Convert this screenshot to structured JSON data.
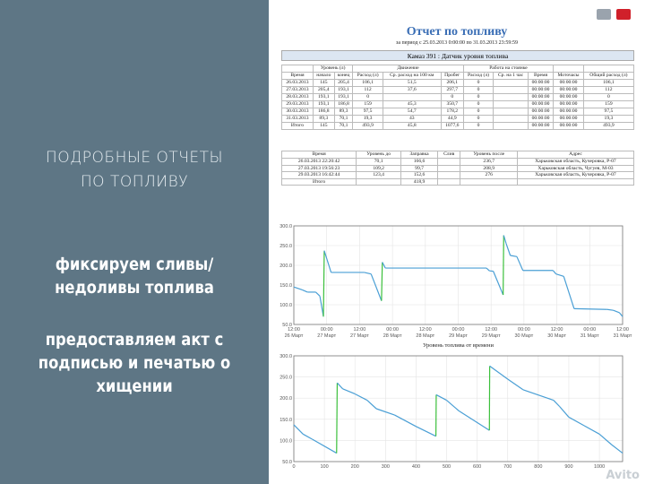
{
  "left": {
    "heading_line1": "ПОДРОБНЫЕ ОТЧЕТЫ",
    "heading_line2": "ПО ТОПЛИВУ",
    "point1_line1": "фиксируем сливы/",
    "point1_line2": "недоливы топлива",
    "point2_line1": "предоставляем акт с",
    "point2_line2": "подписью и печатью о",
    "point2_line3": "хищении"
  },
  "report": {
    "title": "Отчет по топливу",
    "subtitle": "за период с 25.03.2013 0:00:00 по 31.03.2013 23:59:59",
    "caption": "Камаз 391 : Датчик уровня топлива",
    "icons": [
      "printer-icon",
      "pdf-icon"
    ],
    "pdf_color": "#d0202a"
  },
  "table1": {
    "groups": [
      "Уровень (л)",
      "Движение",
      "Работа на стоянке"
    ],
    "headers": [
      "Время",
      "начало",
      "конец",
      "Расход (л)",
      "Ср. расход на 100 км",
      "Пробег",
      "Расход (л)",
      "Ср. на 1 час",
      "Время",
      "Моточасы",
      "Общий расход (л)"
    ],
    "rows": [
      [
        "26.03.2013",
        "145",
        "205,4",
        "106,1",
        "51,5",
        "206,1",
        "0",
        "",
        "00:00:00",
        "00:00:00",
        "106,1"
      ],
      [
        "27.03.2013",
        "205,4",
        "193,1",
        "112",
        "37,6",
        "297,7",
        "0",
        "",
        "00:00:00",
        "00:00:00",
        "112"
      ],
      [
        "28.03.2013",
        "193,1",
        "193,1",
        "0",
        "",
        "0",
        "0",
        "",
        "00:00:00",
        "00:00:00",
        "0"
      ],
      [
        "29.03.2013",
        "193,1",
        "186,8",
        "159",
        "45,3",
        "350,7",
        "0",
        "",
        "00:00:00",
        "00:00:00",
        "159"
      ],
      [
        "30.03.2013",
        "186,8",
        "89,3",
        "97,5",
        "54,7",
        "178,2",
        "0",
        "",
        "00:00:00",
        "00:00:00",
        "97,5"
      ],
      [
        "31.03.2013",
        "89,3",
        "70,1",
        "19,3",
        "43",
        "44,9",
        "0",
        "",
        "00:00:00",
        "00:00:00",
        "19,3"
      ],
      [
        "Итого",
        "145",
        "70,1",
        "493,9",
        "45,8",
        "1077,6",
        "0",
        "",
        "00:00:00",
        "00:00:00",
        "493,9"
      ]
    ]
  },
  "table2": {
    "headers": [
      "Время",
      "Уровень до",
      "Заправка",
      "Слив",
      "Уровень после",
      "Адрес"
    ],
    "rows": [
      [
        "26.03.2013 22:20:42",
        "70,1",
        "166,6",
        "",
        "236,7",
        "Харьковская область, Кучеровка, Р-07"
      ],
      [
        "27.03.2013 19:56:23",
        "109,2",
        "99,7",
        "",
        "208,9",
        "Харьковская область, Чугуев, М-03"
      ],
      [
        "29.03.2013 16:42:44",
        "123,4",
        "152,6",
        "",
        "276",
        "Харьковская область, Кучеровка, Р-07"
      ],
      [
        "Итого",
        "",
        "418,9",
        "",
        "",
        ""
      ]
    ]
  },
  "chart_data": [
    {
      "type": "line",
      "title": "Уровень топлива от времени",
      "xlabel": "",
      "ylabel": "",
      "ylim": [
        50,
        300
      ],
      "yticks": [
        "50.0",
        "100.0",
        "150.0",
        "200.0",
        "250.0",
        "300.0"
      ],
      "xticks": [
        [
          "12:00",
          "26 Март"
        ],
        [
          "00:00",
          "27 Март"
        ],
        [
          "12:00",
          "27 Март"
        ],
        [
          "00:00",
          "28 Март"
        ],
        [
          "12:00",
          "28 Март"
        ],
        [
          "00:00",
          "29 Март"
        ],
        [
          "12:00",
          "29 Март"
        ],
        [
          "00:00",
          "30 Март"
        ],
        [
          "12:00",
          "30 Март"
        ],
        [
          "00:00",
          "31 Март"
        ],
        [
          "12:00",
          "31 Март"
        ]
      ],
      "x_unit_hours_from": "26 Март 12:00",
      "grid": true,
      "line_color": "#4a9fd5",
      "refuel_color": "#3cc03c",
      "points": [
        [
          0,
          145
        ],
        [
          3,
          138
        ],
        [
          5,
          132
        ],
        [
          8,
          132
        ],
        [
          9.5,
          122
        ],
        [
          10.8,
          70
        ],
        [
          11.1,
          237
        ],
        [
          13.6,
          182
        ],
        [
          25.7,
          182
        ],
        [
          28.2,
          178
        ],
        [
          32,
          110
        ],
        [
          32.3,
          208
        ],
        [
          33.4,
          193
        ],
        [
          70.3,
          193
        ],
        [
          71.4,
          186
        ],
        [
          72.8,
          185
        ],
        [
          76.4,
          125
        ],
        [
          76.6,
          276
        ],
        [
          77.5,
          255
        ],
        [
          79,
          225
        ],
        [
          81.4,
          222
        ],
        [
          83.6,
          187
        ],
        [
          94.6,
          187
        ],
        [
          95.7,
          178
        ],
        [
          98.5,
          172
        ],
        [
          102.3,
          90
        ],
        [
          114.4,
          88
        ],
        [
          116.6,
          86
        ],
        [
          118.8,
          80
        ],
        [
          120,
          70
        ]
      ],
      "refuels": [
        [
          10.8,
          11.1
        ],
        [
          32,
          32.3
        ],
        [
          76.4,
          76.6
        ]
      ]
    },
    {
      "type": "line",
      "xlim": [
        0,
        1076
      ],
      "ylim": [
        50,
        300
      ],
      "yticks": [
        "50.0",
        "100.0",
        "150.0",
        "200.0",
        "250.0",
        "300.0"
      ],
      "xticks": [
        "0",
        "100",
        "200",
        "300",
        "400",
        "500",
        "600",
        "700",
        "800",
        "900",
        "1000"
      ],
      "grid": true,
      "line_color": "#4a9fd5",
      "refuel_color": "#3cc03c",
      "points": [
        [
          0,
          137
        ],
        [
          30,
          115
        ],
        [
          60,
          103
        ],
        [
          140,
          70
        ],
        [
          142,
          236
        ],
        [
          160,
          222
        ],
        [
          200,
          210
        ],
        [
          240,
          195
        ],
        [
          270,
          175
        ],
        [
          330,
          160
        ],
        [
          400,
          133
        ],
        [
          465,
          110
        ],
        [
          466,
          208
        ],
        [
          500,
          195
        ],
        [
          540,
          170
        ],
        [
          640,
          124
        ],
        [
          641,
          276
        ],
        [
          700,
          245
        ],
        [
          750,
          220
        ],
        [
          850,
          195
        ],
        [
          870,
          180
        ],
        [
          900,
          155
        ],
        [
          950,
          135
        ],
        [
          1000,
          115
        ],
        [
          1040,
          90
        ],
        [
          1076,
          70
        ]
      ],
      "refuels": [
        [
          140,
          142
        ],
        [
          465,
          466
        ],
        [
          640,
          641
        ]
      ]
    }
  ],
  "watermark": "Avito"
}
